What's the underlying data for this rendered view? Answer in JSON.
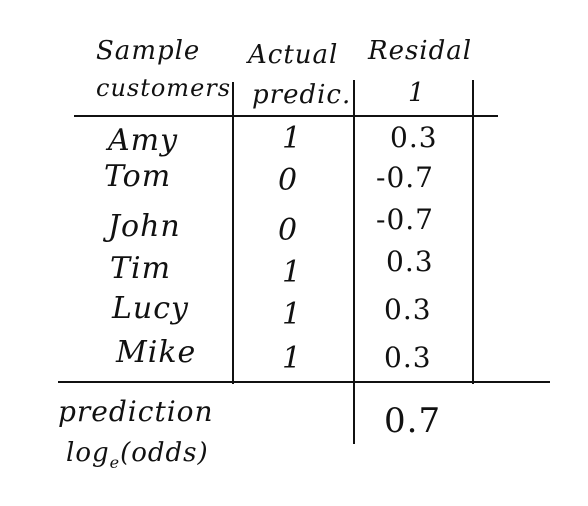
{
  "headers": {
    "sample_line1": "Sample",
    "sample_line2": "customers",
    "actual_line1": "Actual",
    "actual_line2": "predic.",
    "residual_line1": "Residal",
    "residual_line2": "1"
  },
  "rows": [
    {
      "name": "Amy",
      "actual": "1",
      "residual": "0.3"
    },
    {
      "name": "Tom",
      "actual": "0",
      "residual": "-0.7"
    },
    {
      "name": "John",
      "actual": "0",
      "residual": "-0.7"
    },
    {
      "name": "Tim",
      "actual": "1",
      "residual": "0.3"
    },
    {
      "name": "Lucy",
      "actual": "1",
      "residual": "0.3"
    },
    {
      "name": "Mike",
      "actual": "1",
      "residual": "0.3"
    }
  ],
  "footer": {
    "label_line1": "prediction",
    "label_line2_main": "log",
    "label_line2_sub": "e",
    "label_line2_rest": "(odds)",
    "residual_value": "0.7"
  }
}
